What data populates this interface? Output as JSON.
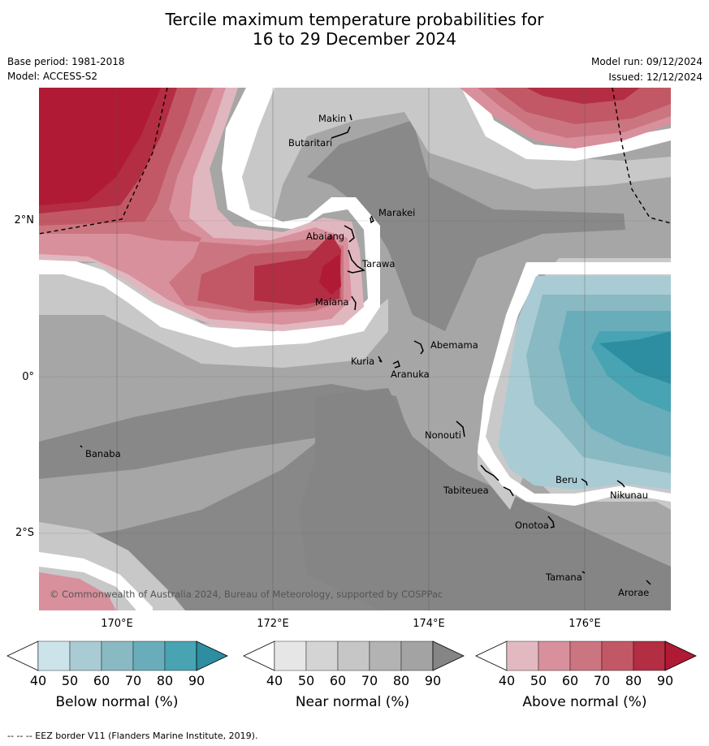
{
  "title": {
    "line1": "Tercile maximum temperature probabilities for",
    "line2": "16 to 29 December 2024"
  },
  "meta": {
    "base_period": "Base period: 1981-2018",
    "model": "Model: ACCESS-S2",
    "model_run": "Model run: 09/12/2024",
    "issued": "Issued: 12/12/2024"
  },
  "axes": {
    "lat_labels": [
      "2°N",
      "0°",
      "2°S"
    ],
    "lon_labels": [
      "170°E",
      "172°E",
      "174°E",
      "176°E"
    ]
  },
  "places": [
    "Makin",
    "Butaritari",
    "Marakei",
    "Abaiang",
    "Tarawa",
    "Maiana",
    "Abemama",
    "Kuria",
    "Aranuka",
    "Nonouti",
    "Banaba",
    "Tabiteuea",
    "Beru",
    "Nikunau",
    "Onotoa",
    "Tamana",
    "Arorae"
  ],
  "copyright": "© Commonwealth of Australia 2024, Bureau of Meteorology, supported by COSPPac",
  "colorbars": [
    {
      "label": "Below normal (%)",
      "ticks": [
        "40",
        "50",
        "60",
        "70",
        "80",
        "90"
      ],
      "colors": [
        "#ffffff",
        "#cce3ea",
        "#a9cbd3",
        "#89b9c3",
        "#69adbb",
        "#48a3b2",
        "#2c8ea0"
      ]
    },
    {
      "label": "Near normal (%)",
      "ticks": [
        "40",
        "50",
        "60",
        "70",
        "80",
        "90"
      ],
      "colors": [
        "#ffffff",
        "#e6e6e6",
        "#d4d4d4",
        "#c6c6c6",
        "#b3b3b3",
        "#a3a3a3",
        "#858585"
      ]
    },
    {
      "label": "Above normal (%)",
      "ticks": [
        "40",
        "50",
        "60",
        "70",
        "80",
        "90"
      ],
      "colors": [
        "#ffffff",
        "#e3b9c1",
        "#d8909c",
        "#cb7580",
        "#c25865",
        "#b32d43",
        "#b01a35"
      ]
    }
  ],
  "footer": "--  --  -- EEZ border V11 (Flanders Marine Institute, 2019)."
}
